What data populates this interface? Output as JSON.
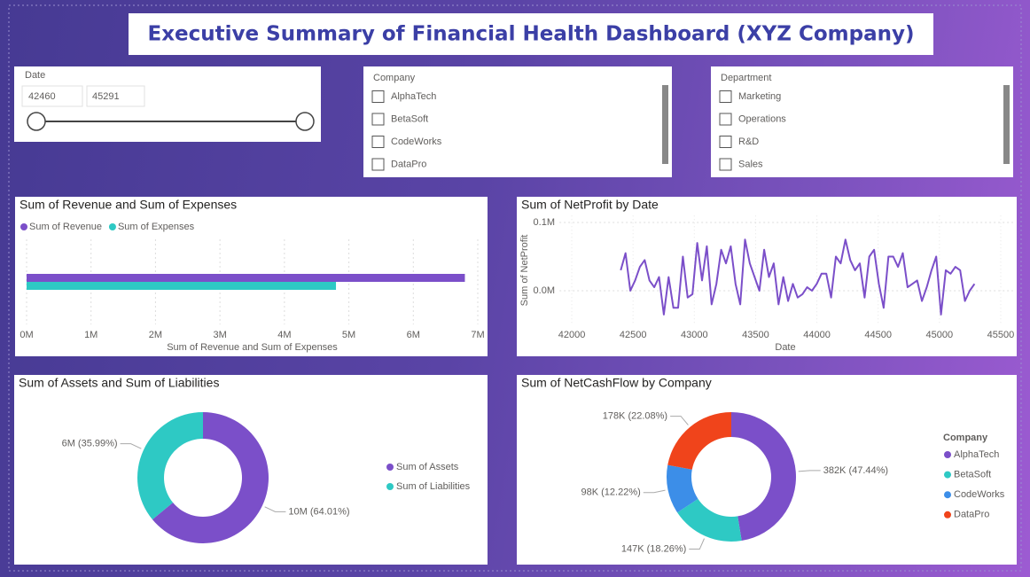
{
  "title": "Executive Summary of Financial Health Dashboard (XYZ Company)",
  "date_slicer": {
    "label": "Date",
    "start": 42460,
    "end": 45291
  },
  "company_slicer": {
    "label": "Company",
    "options": [
      "AlphaTech",
      "BetaSoft",
      "CodeWorks",
      "DataPro"
    ]
  },
  "department_slicer": {
    "label": "Department",
    "options": [
      "Marketing",
      "Operations",
      "R&D",
      "Sales"
    ]
  },
  "chart_data": [
    {
      "type": "bar",
      "horizontal": true,
      "title": "Sum of Revenue and Sum of Expenses",
      "categories": [
        null
      ],
      "series": [
        {
          "name": "Sum of Revenue",
          "color": "#7b4fc9",
          "values": [
            6800000
          ]
        },
        {
          "name": "Sum of Expenses",
          "color": "#2ec9c4",
          "values": [
            4800000
          ]
        }
      ],
      "xlabel": "Sum of Revenue and Sum of Expenses",
      "xlim": [
        0,
        7000000
      ],
      "xticks": [
        {
          "value": 0,
          "label": "0M"
        },
        {
          "value": 1000000,
          "label": "1M"
        },
        {
          "value": 2000000,
          "label": "2M"
        },
        {
          "value": 3000000,
          "label": "3M"
        },
        {
          "value": 4000000,
          "label": "4M"
        },
        {
          "value": 5000000,
          "label": "5M"
        },
        {
          "value": 6000000,
          "label": "6M"
        },
        {
          "value": 7000000,
          "label": "7M"
        }
      ],
      "grid": true,
      "legend": "top-left"
    },
    {
      "type": "line",
      "title": "Sum of NetProfit by Date",
      "xlabel": "Date",
      "ylabel": "Sum of NetProfit",
      "color": "#7b4fc9",
      "x": [
        42400,
        42439,
        42478,
        42517,
        42556,
        42595,
        42634,
        42673,
        42712,
        42751,
        42790,
        42829,
        42868,
        42907,
        42946,
        42985,
        43024,
        43063,
        43102,
        43141,
        43180,
        43219,
        43258,
        43297,
        43336,
        43375,
        43414,
        43453,
        43492,
        43531,
        43570,
        43609,
        43648,
        43687,
        43726,
        43765,
        43804,
        43843,
        43882,
        43921,
        43960,
        43999,
        44038,
        44077,
        44116,
        44155,
        44194,
        44233,
        44272,
        44311,
        44350,
        44389,
        44428,
        44467,
        44506,
        44545,
        44584,
        44623,
        44662,
        44701,
        44740,
        44779,
        44818,
        44857,
        44896,
        44935,
        44974,
        45013,
        45052,
        45091,
        45130,
        45169,
        45208,
        45247,
        45286
      ],
      "values": [
        30000,
        55000,
        0,
        15000,
        35000,
        45000,
        15000,
        5000,
        20000,
        -35000,
        20000,
        -25000,
        -25000,
        50000,
        -10000,
        -5000,
        70000,
        15000,
        65000,
        -20000,
        10000,
        60000,
        40000,
        65000,
        10000,
        -20000,
        75000,
        40000,
        20000,
        0,
        60000,
        20000,
        40000,
        -20000,
        20000,
        -15000,
        10000,
        -10000,
        -5000,
        5000,
        0,
        10000,
        25000,
        25000,
        -10000,
        50000,
        40000,
        75000,
        45000,
        30000,
        40000,
        -10000,
        50000,
        60000,
        10000,
        -25000,
        50000,
        50000,
        35000,
        55000,
        5000,
        10000,
        15000,
        -15000,
        5000,
        30000,
        50000,
        -35000,
        30000,
        25000,
        35000,
        30000,
        -15000,
        0,
        10000
      ],
      "xlim": [
        41900,
        45600
      ],
      "xticks": [
        42000,
        42500,
        43000,
        43500,
        44000,
        44500,
        45000,
        45500
      ],
      "ylim": [
        -50000,
        110000
      ],
      "yticks": [
        {
          "value": 0,
          "label": "0.0M"
        },
        {
          "value": 100000,
          "label": "0.1M"
        }
      ],
      "grid": true
    },
    {
      "type": "pie",
      "donut": true,
      "title": "Sum of Assets and Sum of Liabilities",
      "categories": [
        "Sum of Assets",
        "Sum of Liabilities"
      ],
      "values": [
        64.01,
        35.99
      ],
      "value_labels": [
        "10M (64.01%)",
        "6M (35.99%)"
      ],
      "colors": [
        "#7b4fc9",
        "#2ec9c4"
      ],
      "legend": "right"
    },
    {
      "type": "pie",
      "donut": true,
      "title": "Sum of NetCashFlow by Company",
      "legend_title": "Company",
      "categories": [
        "AlphaTech",
        "BetaSoft",
        "CodeWorks",
        "DataPro"
      ],
      "values": [
        47.44,
        18.26,
        12.22,
        22.08
      ],
      "value_labels": [
        "382K (47.44%)",
        "147K (18.26%)",
        "98K (12.22%)",
        "178K (22.08%)"
      ],
      "colors": [
        "#7b4fc9",
        "#2ec9c4",
        "#3c8ee8",
        "#f0441b"
      ],
      "legend": "right"
    }
  ]
}
